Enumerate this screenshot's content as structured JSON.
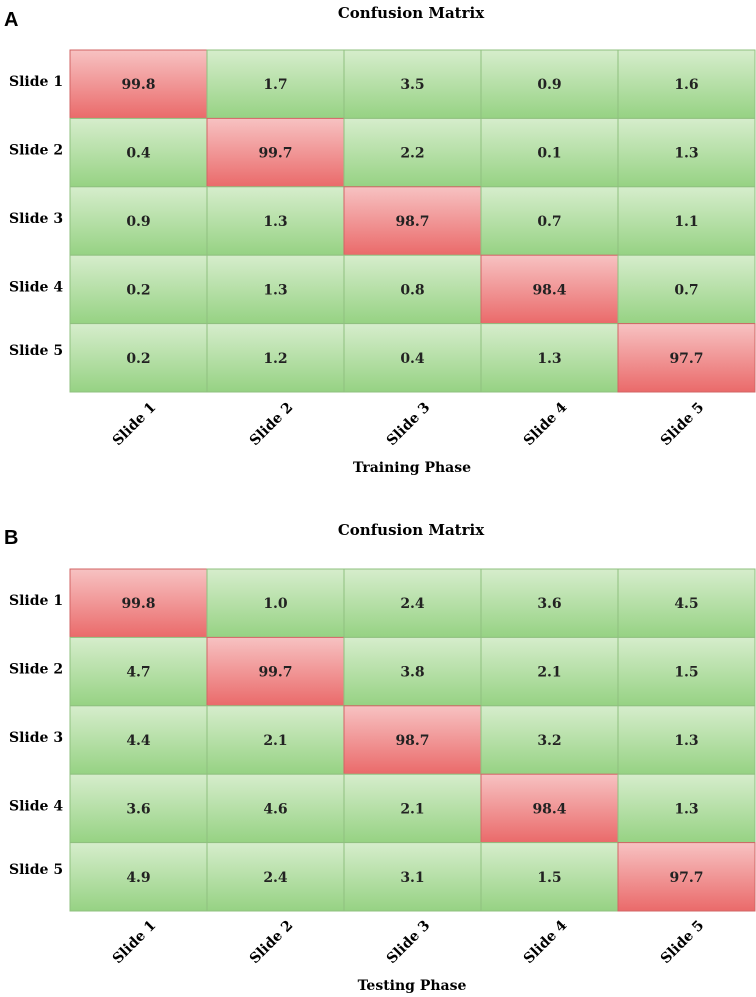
{
  "chart_data": [
    {
      "type": "heatmap",
      "panel_label": "A",
      "title": "Confusion Matrix",
      "xlabel": "Training Phase",
      "ylabel": "",
      "rows": [
        "Slide 1",
        "Slide 2",
        "Slide 3",
        "Slide 4",
        "Slide 5"
      ],
      "cols": [
        "Slide 1",
        "Slide 2",
        "Slide 3",
        "Slide 4",
        "Slide 5"
      ],
      "values": [
        [
          "99.8",
          "1.7",
          "3.5",
          "0.9",
          "1.6"
        ],
        [
          "0.4",
          "99.7",
          "2.2",
          "0.1",
          "1.3"
        ],
        [
          "0.9",
          "1.3",
          "98.7",
          "0.7",
          "1.1"
        ],
        [
          "0.2",
          "1.3",
          "0.8",
          "98.4",
          "0.7"
        ],
        [
          "0.2",
          "1.2",
          "0.4",
          "1.3",
          "97.7"
        ]
      ]
    },
    {
      "type": "heatmap",
      "panel_label": "B",
      "title": "Confusion Matrix",
      "xlabel": "Testing Phase",
      "ylabel": "",
      "rows": [
        "Slide 1",
        "Slide 2",
        "Slide 3",
        "Slide 4",
        "Slide 5"
      ],
      "cols": [
        "Slide 1",
        "Slide 2",
        "Slide 3",
        "Slide 4",
        "Slide 5"
      ],
      "values": [
        [
          "99.8",
          "1.0",
          "2.4",
          "3.6",
          "4.5"
        ],
        [
          "4.7",
          "99.7",
          "3.8",
          "2.1",
          "1.5"
        ],
        [
          "4.4",
          "2.1",
          "98.7",
          "3.2",
          "1.3"
        ],
        [
          "3.6",
          "4.6",
          "2.1",
          "98.4",
          "1.3"
        ],
        [
          "4.9",
          "2.4",
          "3.1",
          "1.5",
          "97.7"
        ]
      ]
    }
  ],
  "colors": {
    "diagonal_cell": "#ee7878",
    "offdiagonal_cell": "#a9dc98",
    "text": "#222222"
  }
}
